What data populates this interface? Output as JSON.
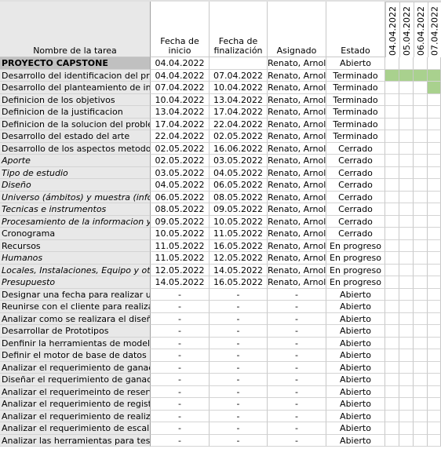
{
  "headers": {
    "task_name": "Nombre de la tarea",
    "start_date": "Fecha de\ninicio",
    "end_date": "Fecha de\nfinalización",
    "assignee": "Asignado",
    "status": "Estado",
    "dates": [
      "04.04.2022",
      "05.04.2022",
      "06.04.2022",
      "07.04.2022"
    ]
  },
  "colors": {
    "gantt_bar": "#a9d18e",
    "section_bg": "#c0c0c0",
    "name_col_bg": "#e8e8e8"
  },
  "rows": [
    {
      "name": "PROYECTO CAPSTONE",
      "start": "04.04.2022",
      "end": "",
      "assignee": "Renato, Arnold",
      "status": "Abierto",
      "style": "section",
      "gantt": [
        0,
        0,
        0,
        0
      ]
    },
    {
      "name": "Desarrollo del identificacion del problema",
      "start": "04.04.2022",
      "end": "07.04.2022",
      "assignee": "Renato, Arnold",
      "status": "Terminado",
      "style": "normal",
      "gantt": [
        1,
        1,
        1,
        1
      ]
    },
    {
      "name": "Desarrollo del planteamiento de investigacion",
      "start": "07.04.2022",
      "end": "10.04.2022",
      "assignee": "Renato, Arnold",
      "status": "Terminado",
      "style": "normal",
      "gantt": [
        0,
        0,
        0,
        1
      ]
    },
    {
      "name": "Definicion de los objetivos",
      "start": "10.04.2022",
      "end": "13.04.2022",
      "assignee": "Renato, Arnold",
      "status": "Terminado",
      "style": "normal",
      "gantt": [
        0,
        0,
        0,
        0
      ]
    },
    {
      "name": "Definicion de la justificacion",
      "start": "13.04.2022",
      "end": "17.04.2022",
      "assignee": "Renato, Arnold",
      "status": "Terminado",
      "style": "normal",
      "gantt": [
        0,
        0,
        0,
        0
      ]
    },
    {
      "name": "Definicion de la solucion del problema",
      "start": "17.04.2022",
      "end": "22.04.2022",
      "assignee": "Renato, Arnold",
      "status": "Terminado",
      "style": "normal",
      "gantt": [
        0,
        0,
        0,
        0
      ]
    },
    {
      "name": "Desarrollo del estado del arte",
      "start": "22.04.2022",
      "end": "02.05.2022",
      "assignee": "Renato, Arnold",
      "status": "Terminado",
      "style": "normal",
      "gantt": [
        0,
        0,
        0,
        0
      ]
    },
    {
      "name": "Desarrollo de los aspectos metodologicos",
      "start": "02.05.2022",
      "end": "16.06.2022",
      "assignee": "Renato, Arnold",
      "status": "Cerrado",
      "style": "normal",
      "gantt": [
        0,
        0,
        0,
        0
      ]
    },
    {
      "name": "Aporte",
      "start": "02.05.2022",
      "end": "03.05.2022",
      "assignee": "Renato, Arnold",
      "status": "Cerrado",
      "style": "italic",
      "gantt": [
        0,
        0,
        0,
        0
      ]
    },
    {
      "name": "Tipo de estudio",
      "start": "03.05.2022",
      "end": "04.05.2022",
      "assignee": "Renato, Arnold",
      "status": "Cerrado",
      "style": "italic",
      "gantt": [
        0,
        0,
        0,
        0
      ]
    },
    {
      "name": "Diseño",
      "start": "04.05.2022",
      "end": "06.05.2022",
      "assignee": "Renato, Arnold",
      "status": "Cerrado",
      "style": "italic",
      "gantt": [
        0,
        0,
        0,
        0
      ]
    },
    {
      "name": "Universo (ámbitos) y muestra (informantes)",
      "start": "06.05.2022",
      "end": "08.05.2022",
      "assignee": "Renato, Arnold",
      "status": "Cerrado",
      "style": "italic",
      "gantt": [
        0,
        0,
        0,
        0
      ]
    },
    {
      "name": "Tecnicas e instrumentos",
      "start": "08.05.2022",
      "end": "09.05.2022",
      "assignee": "Renato, Arnold",
      "status": "Cerrado",
      "style": "italic",
      "gantt": [
        0,
        0,
        0,
        0
      ]
    },
    {
      "name": "Procesamiento de la informacion y analisis",
      "start": "09.05.2022",
      "end": "10.05.2022",
      "assignee": "Renato, Arnold",
      "status": "Cerrado",
      "style": "italic",
      "gantt": [
        0,
        0,
        0,
        0
      ]
    },
    {
      "name": "Cronograma",
      "start": "10.05.2022",
      "end": "11.05.2022",
      "assignee": "Renato, Arnold",
      "status": "Cerrado",
      "style": "normal",
      "gantt": [
        0,
        0,
        0,
        0
      ]
    },
    {
      "name": "Recursos",
      "start": "11.05.2022",
      "end": "16.05.2022",
      "assignee": "Renato, Arnold",
      "status": "En progreso",
      "style": "normal",
      "gantt": [
        0,
        0,
        0,
        0
      ]
    },
    {
      "name": "Humanos",
      "start": "11.05.2022",
      "end": "12.05.2022",
      "assignee": "Renato, Arnold",
      "status": "En progreso",
      "style": "italic",
      "gantt": [
        0,
        0,
        0,
        0
      ]
    },
    {
      "name": "Locales, Instalaciones, Equipo y otros recursos",
      "start": "12.05.2022",
      "end": "14.05.2022",
      "assignee": "Renato, Arnold",
      "status": "En progreso",
      "style": "italic",
      "gantt": [
        0,
        0,
        0,
        0
      ]
    },
    {
      "name": "Presupuesto",
      "start": "14.05.2022",
      "end": "16.05.2022",
      "assignee": "Renato, Arnold",
      "status": "En progreso",
      "style": "italic",
      "gantt": [
        0,
        0,
        0,
        0
      ]
    },
    {
      "name": "Designar una fecha para realizar una reunion",
      "start": "-",
      "end": "-",
      "assignee": "-",
      "status": "Abierto",
      "style": "normal",
      "gantt": [
        0,
        0,
        0,
        0
      ]
    },
    {
      "name": "Reunirse con el cliente para realizar la toma",
      "start": "-",
      "end": "-",
      "assignee": "-",
      "status": "Abierto",
      "style": "normal",
      "gantt": [
        0,
        0,
        0,
        0
      ]
    },
    {
      "name": "Analizar como se realizara el diseño de la app",
      "start": "-",
      "end": "-",
      "assignee": "-",
      "status": "Abierto",
      "style": "normal",
      "gantt": [
        0,
        0,
        0,
        0
      ]
    },
    {
      "name": "Desarrollar de Prototipos",
      "start": "-",
      "end": "-",
      "assignee": "-",
      "status": "Abierto",
      "style": "normal",
      "gantt": [
        0,
        0,
        0,
        0
      ]
    },
    {
      "name": "Denfinir la herramientas de modelado",
      "start": "-",
      "end": "-",
      "assignee": "-",
      "status": "Abierto",
      "style": "normal",
      "gantt": [
        0,
        0,
        0,
        0
      ]
    },
    {
      "name": "Definir el motor de base de datos",
      "start": "-",
      "end": "-",
      "assignee": "-",
      "status": "Abierto",
      "style": "normal",
      "gantt": [
        0,
        0,
        0,
        0
      ]
    },
    {
      "name": "Analizar el requerimiento de ganacial total",
      "start": "-",
      "end": "-",
      "assignee": "-",
      "status": "Abierto",
      "style": "normal",
      "gantt": [
        0,
        0,
        0,
        0
      ]
    },
    {
      "name": "Diseñar el requerimiento de ganacial total",
      "start": "-",
      "end": "-",
      "assignee": "-",
      "status": "Abierto",
      "style": "normal",
      "gantt": [
        0,
        0,
        0,
        0
      ]
    },
    {
      "name": "Analizar el requerimeinto de reservaciones",
      "start": "-",
      "end": "-",
      "assignee": "-",
      "status": "Abierto",
      "style": "normal",
      "gantt": [
        0,
        0,
        0,
        0
      ]
    },
    {
      "name": "Analizar el requerimiento de registro de datos",
      "start": "-",
      "end": "-",
      "assignee": "-",
      "status": "Abierto",
      "style": "normal",
      "gantt": [
        0,
        0,
        0,
        0
      ]
    },
    {
      "name": "Analizar el requerimiento de realizar una",
      "start": "-",
      "end": "-",
      "assignee": "-",
      "status": "Abierto",
      "style": "normal",
      "gantt": [
        0,
        0,
        0,
        0
      ]
    },
    {
      "name": "Analizar el requerimiento de escalabilidad",
      "start": "-",
      "end": "-",
      "assignee": "-",
      "status": "Abierto",
      "style": "normal",
      "gantt": [
        0,
        0,
        0,
        0
      ]
    },
    {
      "name": "Analizar las herramientas para test de",
      "start": "-",
      "end": "-",
      "assignee": "-",
      "status": "Abierto",
      "style": "normal",
      "gantt": [
        0,
        0,
        0,
        0
      ]
    }
  ]
}
